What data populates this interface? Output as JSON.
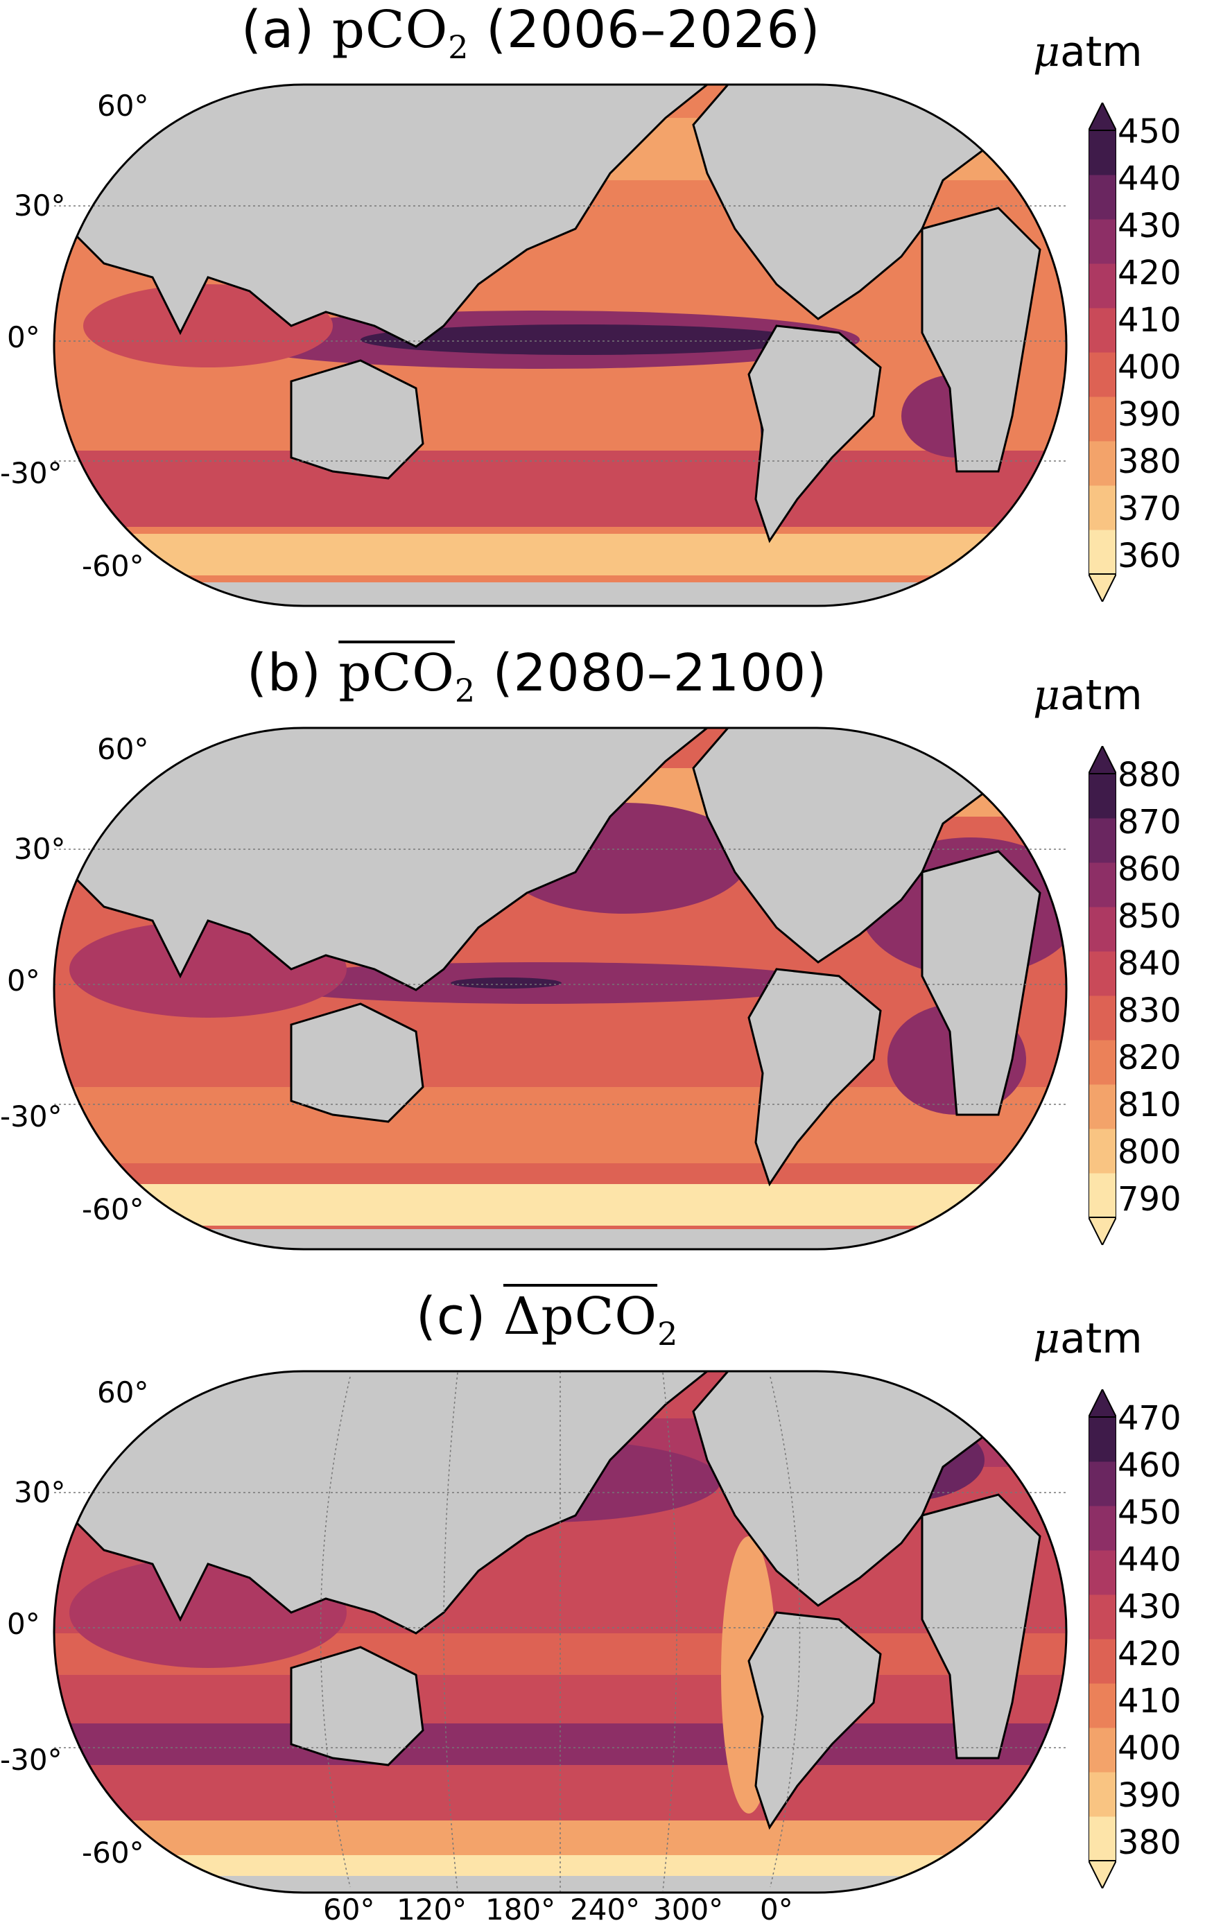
{
  "panels": [
    {
      "label": "(a)",
      "var": "pCO",
      "sub": "2",
      "period": "(2006–2026)",
      "unit_mu": "μ",
      "unit_rest": "atm",
      "ticks": [
        "450",
        "440",
        "430",
        "420",
        "410",
        "400",
        "390",
        "380",
        "370",
        "360"
      ],
      "lat_labels": [
        "60°",
        "30°",
        "0°",
        "-30°",
        "-60°"
      ],
      "colors": [
        "#fde4a9",
        "#f9c482",
        "#f3a36a",
        "#eb8159",
        "#dd6254",
        "#c94a59",
        "#ad3962",
        "#8d2f66",
        "#6a2660",
        "#3f1b4a"
      ]
    },
    {
      "label": "(b)",
      "var": "pCO",
      "sub": "2",
      "period": "(2080–2100)",
      "unit_mu": "μ",
      "unit_rest": "atm",
      "ticks": [
        "880",
        "870",
        "860",
        "850",
        "840",
        "830",
        "820",
        "810",
        "800",
        "790"
      ],
      "lat_labels": [
        "60°",
        "30°",
        "0°",
        "-30°",
        "-60°"
      ],
      "colors": [
        "#fde4a9",
        "#f9c482",
        "#f3a36a",
        "#eb8159",
        "#dd6254",
        "#c94a59",
        "#ad3962",
        "#8d2f66",
        "#6a2660",
        "#3f1b4a"
      ]
    },
    {
      "label": "(c)",
      "var": "ΔpCO",
      "sub": "2",
      "period": "",
      "unit_mu": "μ",
      "unit_rest": "atm",
      "ticks": [
        "470",
        "460",
        "450",
        "440",
        "430",
        "420",
        "410",
        "400",
        "390",
        "380"
      ],
      "lat_labels": [
        "60°",
        "30°",
        "0°",
        "-30°",
        "-60°"
      ],
      "colors": [
        "#fde4a9",
        "#f9c482",
        "#f3a36a",
        "#eb8159",
        "#dd6254",
        "#c94a59",
        "#ad3962",
        "#8d2f66",
        "#6a2660",
        "#3f1b4a"
      ]
    }
  ],
  "lon_labels": [
    "60°",
    "120°",
    "180°",
    "240°",
    "300°",
    "0°"
  ],
  "land_color": "#c8c8c8",
  "frame_color": "#000000"
}
